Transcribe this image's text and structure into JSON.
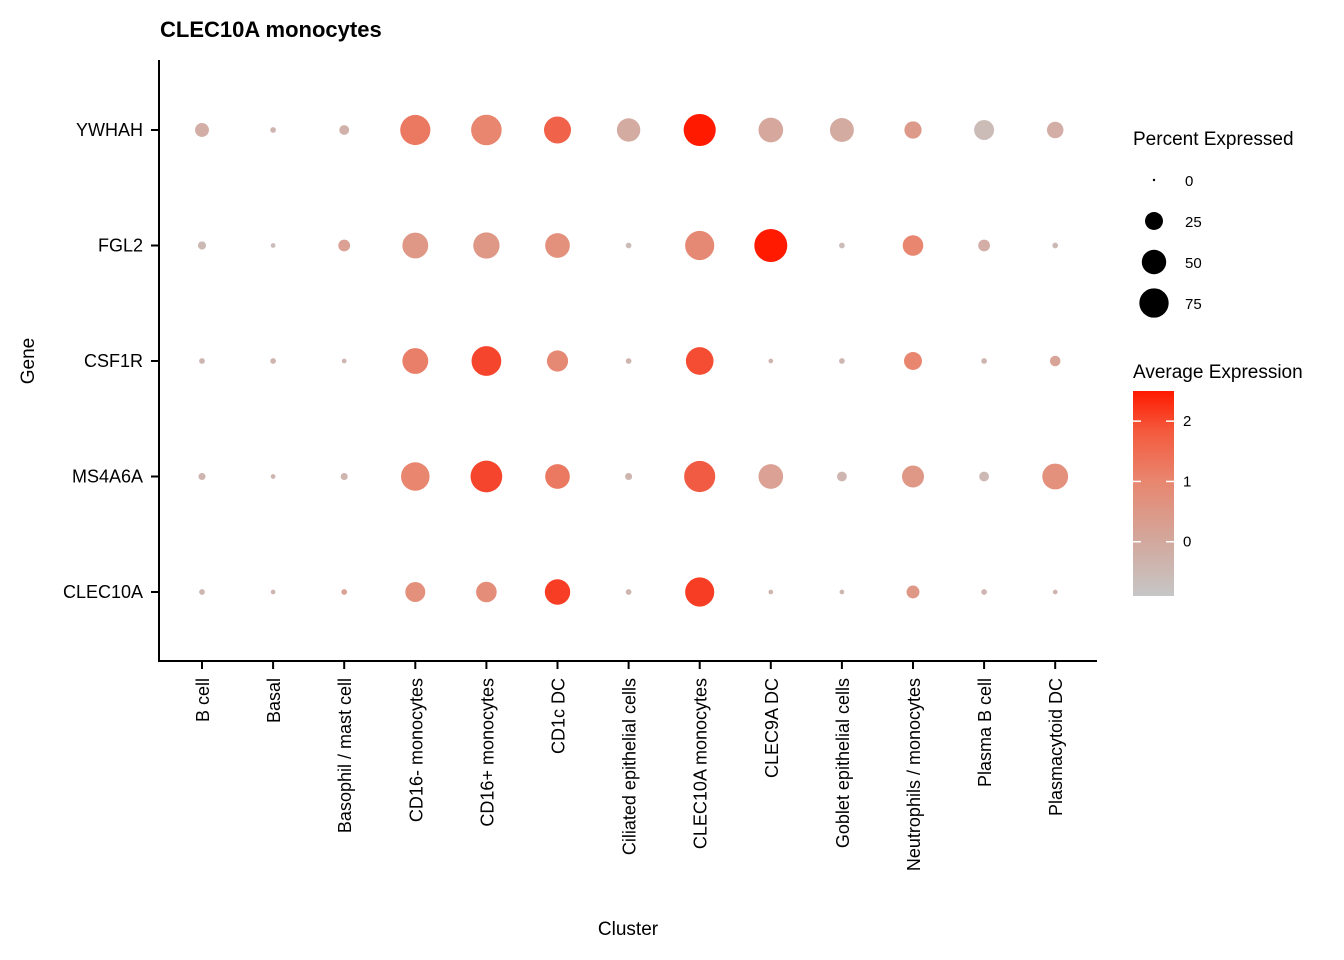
{
  "chart_data": {
    "type": "dot",
    "title": "CLEC10A monocytes",
    "xlabel": "Cluster",
    "ylabel": "Gene",
    "clusters": [
      "B cell",
      "Basal",
      "Basophil / mast cell",
      "CD16- monocytes",
      "CD16+ monocytes",
      "CD1c DC",
      "Ciliated epithelial cells",
      "CLEC10A monocytes",
      "CLEC9A DC",
      "Goblet epithelial cells",
      "Neutrophils / monocytes",
      "Plasma B cell",
      "Plasmacytoid DC"
    ],
    "genes": [
      "YWHAH",
      "FGL2",
      "CSF1R",
      "MS4A6A",
      "CLEC10A"
    ],
    "pct_expressed": {
      "YWHAH": [
        12,
        1,
        5,
        70,
        72,
        55,
        40,
        80,
        45,
        42,
        20,
        28,
        18
      ],
      "FGL2": [
        3,
        0.5,
        8,
        50,
        52,
        45,
        1,
        65,
        85,
        1,
        30,
        8,
        1
      ],
      "CSF1R": [
        1,
        1,
        0.5,
        50,
        68,
        32,
        1,
        58,
        0.5,
        1,
        22,
        1,
        6
      ],
      "MS4A6A": [
        2,
        0.5,
        2,
        62,
        78,
        45,
        2,
        75,
        45,
        5,
        35,
        5,
        50
      ],
      "CLEC10A": [
        1,
        0.5,
        1,
        28,
        30,
        48,
        1,
        65,
        0.5,
        0.5,
        10,
        1,
        0.5
      ]
    },
    "avg_expression": {
      "YWHAH": [
        -0.2,
        -0.4,
        -0.3,
        1.2,
        1.0,
        1.5,
        -0.1,
        2.5,
        0.0,
        -0.1,
        0.4,
        -0.6,
        -0.2
      ],
      "FGL2": [
        -0.5,
        -0.6,
        0.2,
        0.5,
        0.5,
        0.7,
        -0.6,
        0.9,
        2.5,
        -0.6,
        1.0,
        -0.2,
        -0.5
      ],
      "CSF1R": [
        -0.4,
        -0.4,
        -0.4,
        1.1,
        1.9,
        0.9,
        -0.4,
        1.8,
        -0.4,
        -0.4,
        1.0,
        -0.4,
        0.1
      ],
      "MS4A6A": [
        -0.4,
        -0.4,
        -0.4,
        1.0,
        1.9,
        1.2,
        -0.4,
        1.6,
        0.2,
        -0.4,
        0.5,
        -0.5,
        0.7
      ],
      "CLEC10A": [
        -0.4,
        -0.4,
        0.2,
        0.7,
        0.8,
        2.0,
        -0.4,
        2.0,
        -0.4,
        -0.4,
        0.5,
        -0.4,
        -0.4
      ]
    },
    "size_legend": {
      "title": "Percent Expressed",
      "breaks": [
        0,
        25,
        50,
        75
      ],
      "labels": [
        "0",
        "25",
        "50",
        "75"
      ]
    },
    "color_legend": {
      "title": "Average Expression",
      "range": [
        -0.9,
        2.5
      ],
      "breaks": [
        0,
        1,
        2
      ],
      "labels": [
        "0",
        "1",
        "2"
      ],
      "low_color": "#c6c6c6",
      "high_color": "#ff1a00"
    },
    "legend_position": "right",
    "grid": false
  }
}
